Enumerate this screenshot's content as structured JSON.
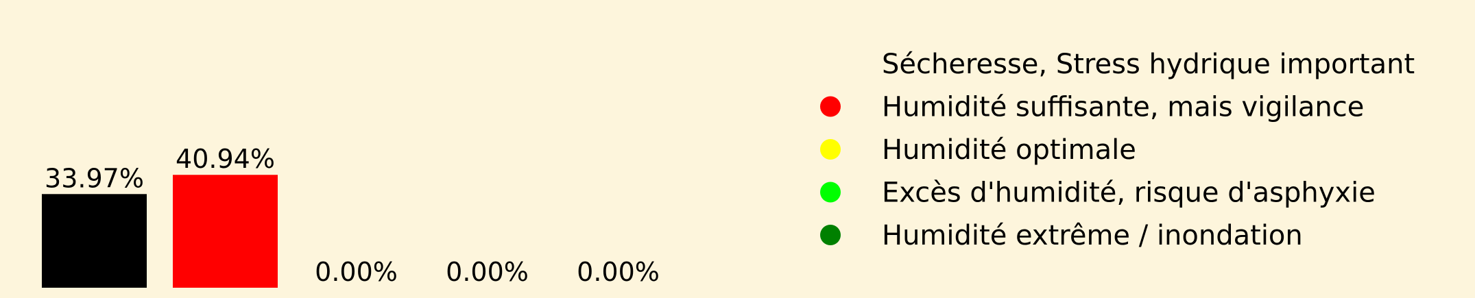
{
  "chart_data": {
    "type": "bar",
    "categories": [
      "Sécheresse, Stress hydrique important",
      "Humidité suffisante, mais vigilance",
      "Humidité optimale",
      "Excès d'humidité, risque d'asphyxie",
      "Humidité extrême / inondation"
    ],
    "values": [
      33.97,
      40.94,
      0.0,
      0.0,
      0.0
    ],
    "value_labels": [
      "33.97%",
      "40.94%",
      "0.00%",
      "0.00%",
      "0.00%"
    ],
    "colors": [
      "#000000",
      "#ff0000",
      "#ffff00",
      "#00ff00",
      "#008000"
    ],
    "ylim": [
      0,
      41
    ],
    "grid": false,
    "legend_position": "right",
    "legend_marker_visible": [
      false,
      true,
      true,
      true,
      true
    ]
  }
}
